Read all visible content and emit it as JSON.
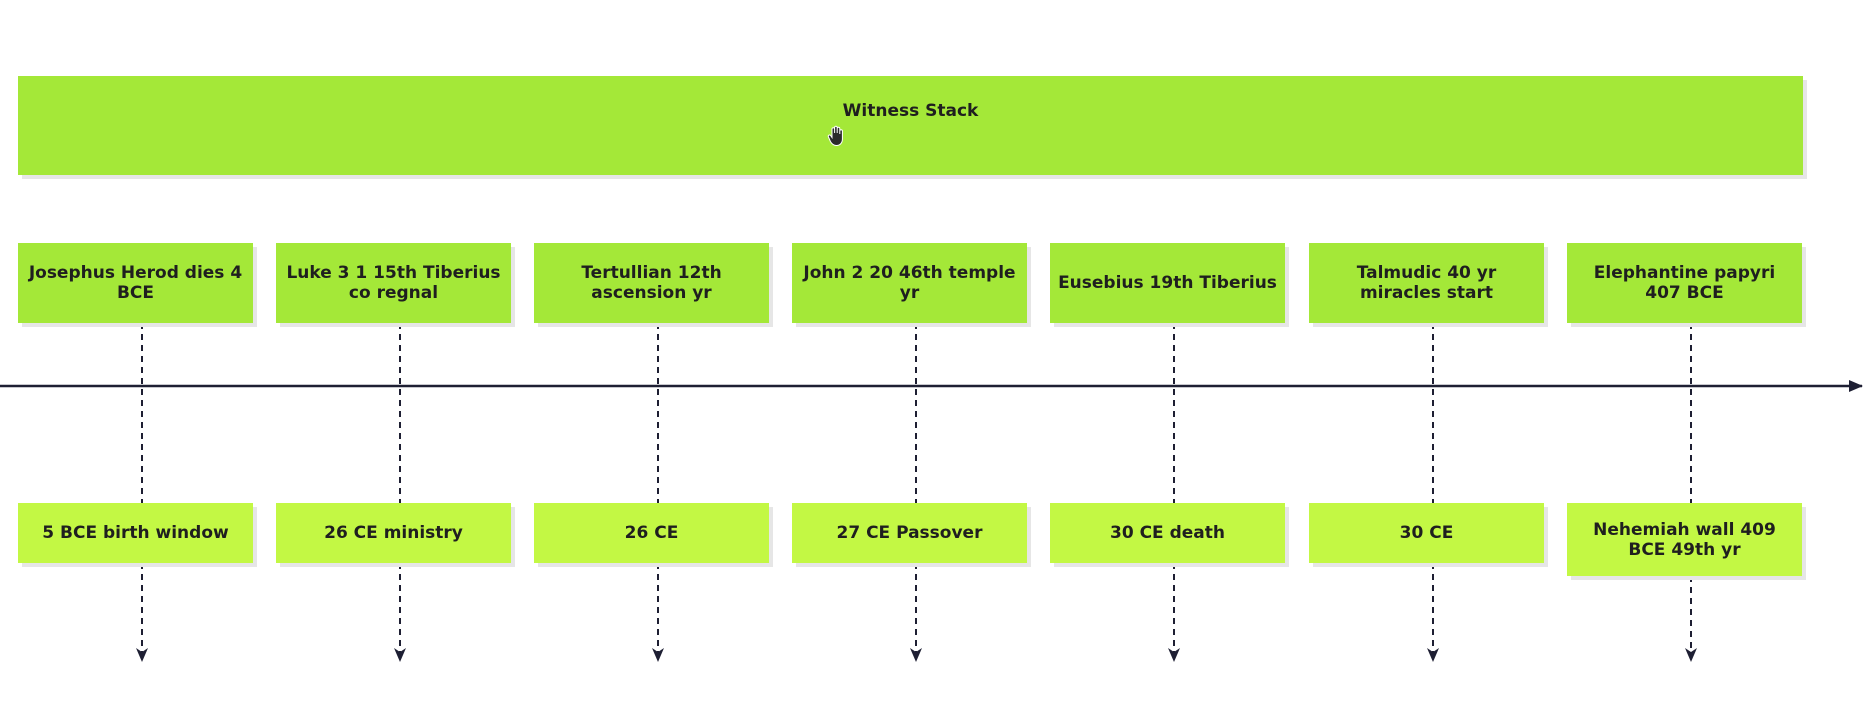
{
  "header": {
    "title": "Witness Stack"
  },
  "columns": [
    {
      "top": "Josephus Herod dies 4 BCE",
      "bottom": "5 BCE birth window"
    },
    {
      "top": "Luke 3 1 15th Tiberius co regnal",
      "bottom": "26 CE ministry"
    },
    {
      "top": "Tertullian 12th ascension yr",
      "bottom": "26 CE"
    },
    {
      "top": "John 2 20 46th temple yr",
      "bottom": "27 CE Passover"
    },
    {
      "top": "Eusebius 19th Tiberius",
      "bottom": "30 CE death"
    },
    {
      "top": "Talmudic 40 yr miracles start",
      "bottom": "30 CE"
    },
    {
      "top": "Elephantine papyri 407 BCE",
      "bottom": "Nehemiah wall 409 BCE 49th yr"
    }
  ],
  "colors": {
    "header_fill": "#a4e838",
    "top_fill": "#a4e838",
    "bottom_fill": "#c3f844",
    "line": "#1e1f33"
  },
  "icons": {
    "cursor": "hand-grab-icon"
  }
}
